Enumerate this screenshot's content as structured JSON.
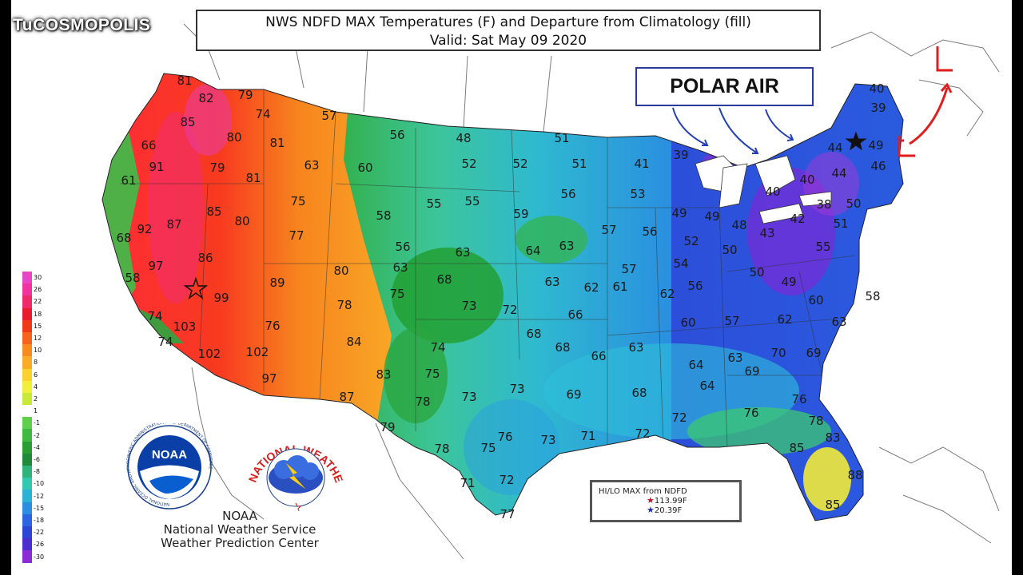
{
  "brand": "TuCOSMOPOLIS",
  "title_line1": "NWS NDFD MAX Temperatures (F) and Departure from Climatology (fill)",
  "title_line2": "Valid: Sat May 09 2020",
  "annotation": "POLAR AIR",
  "legend": {
    "labels": [
      "30",
      "26",
      "22",
      "18",
      "15",
      "12",
      "10",
      "8",
      "6",
      "4",
      "2",
      "1",
      "-1",
      "-2",
      "-4",
      "-6",
      "-8",
      "-10",
      "-12",
      "-15",
      "-18",
      "-22",
      "-26",
      "-30"
    ],
    "colors": [
      "#e844c6",
      "#f0339e",
      "#ee2a6a",
      "#e81c2c",
      "#f03a14",
      "#f5641a",
      "#f88a1e",
      "#fbab26",
      "#fcd02e",
      "#f2ef3a",
      "#c8e83a",
      "#ffffff",
      "#5ed14a",
      "#3dbb3e",
      "#2a9e32",
      "#1f8a3a",
      "#2cb47a",
      "#2fc8b0",
      "#2ab2d6",
      "#2a8fe0",
      "#2a66e0",
      "#2d46d6",
      "#4a2ed0",
      "#8c2ad6"
    ]
  },
  "temperatures": [
    "81",
    "82",
    "79",
    "85",
    "74",
    "80",
    "81",
    "57",
    "56",
    "48",
    "51",
    "66",
    "91",
    "79",
    "81",
    "63",
    "60",
    "52",
    "52",
    "51",
    "41",
    "39",
    "40",
    "39",
    "44",
    "49",
    "61",
    "87",
    "85",
    "80",
    "75",
    "58",
    "55",
    "55",
    "59",
    "56",
    "53",
    "49",
    "49",
    "48",
    "40",
    "40",
    "44",
    "46",
    "68",
    "92",
    "77",
    "56",
    "63",
    "64",
    "63",
    "57",
    "56",
    "52",
    "50",
    "43",
    "42",
    "38",
    "51",
    "97",
    "86",
    "80",
    "63",
    "68",
    "63",
    "62",
    "61",
    "57",
    "54",
    "56",
    "50",
    "49",
    "55",
    "50",
    "58",
    "89",
    "75",
    "73",
    "72",
    "66",
    "62",
    "60",
    "57",
    "62",
    "60",
    "58",
    "74",
    "103",
    "99",
    "78",
    "76",
    "84",
    "68",
    "68",
    "66",
    "63",
    "64",
    "63",
    "70",
    "69",
    "63",
    "74",
    "102",
    "102",
    "74",
    "83",
    "75",
    "78",
    "73",
    "73",
    "69",
    "68",
    "64",
    "69",
    "76",
    "97",
    "87",
    "79",
    "78",
    "75",
    "76",
    "73",
    "71",
    "72",
    "72",
    "76",
    "78",
    "83",
    "85",
    "71",
    "72",
    "88",
    "77",
    "85"
  ],
  "hilo": {
    "title": "HI/LO MAX from NDFD",
    "hi": "113.99F",
    "lo": "20.39F"
  },
  "agency": {
    "line1": "NOAA",
    "line2": "National Weather Service",
    "line3": "Weather Prediction Center",
    "noaa_logo_text": "NOAA",
    "noaa_ring_text": "NATIONAL OCEANIC AND ATMOSPHERIC ADMINISTRATION · U.S. DEPARTMENT OF COMMERCE",
    "nws_ring_text": "NATIONAL WEATHER SERVICE"
  },
  "low_marker": "L"
}
